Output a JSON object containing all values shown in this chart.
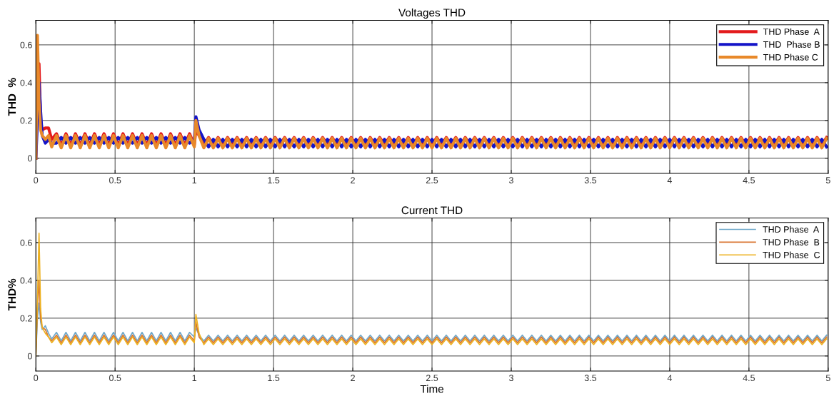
{
  "chart_data": [
    {
      "type": "line",
      "title": "Voltages THD",
      "ylabel": "THD  %",
      "x": [
        0,
        0.01,
        0.02,
        0.03,
        0.04,
        0.06,
        0.08,
        0.1,
        0.13,
        0.16,
        0.19,
        0.22,
        0.25,
        0.28,
        0.31,
        0.34,
        0.37,
        0.4,
        0.43,
        0.46,
        0.49,
        0.52,
        0.55,
        0.58,
        0.61,
        0.64,
        0.67,
        0.7,
        0.73,
        0.76,
        0.79,
        0.82,
        0.85,
        0.88,
        0.91,
        0.94,
        0.97,
        1.0,
        1.01,
        1.03,
        1.06,
        1.09,
        1.12,
        1.15,
        1.18,
        1.21,
        1.24,
        1.27,
        1.3,
        1.33,
        1.36,
        1.39,
        1.42,
        1.45,
        1.48,
        1.51,
        1.54,
        1.57,
        1.6,
        1.63,
        1.66,
        1.69,
        1.72,
        1.75,
        1.78,
        1.81,
        1.84,
        1.87,
        1.9,
        1.93,
        1.96,
        1.99,
        2.02,
        2.05,
        2.08,
        2.11,
        2.14,
        2.17,
        2.2,
        2.23,
        2.26,
        2.29,
        2.32,
        2.35,
        2.38,
        2.41,
        2.44,
        2.47,
        2.5,
        2.53,
        2.56,
        2.59,
        2.62,
        2.65,
        2.68,
        2.71,
        2.74,
        2.77,
        2.8,
        2.83,
        2.86,
        2.89,
        2.92,
        2.95,
        2.98,
        3.01,
        3.04,
        3.07,
        3.1,
        3.13,
        3.16,
        3.19,
        3.22,
        3.25,
        3.28,
        3.31,
        3.34,
        3.37,
        3.4,
        3.43,
        3.46,
        3.49,
        3.52,
        3.55,
        3.58,
        3.61,
        3.64,
        3.67,
        3.7,
        3.73,
        3.76,
        3.79,
        3.82,
        3.85,
        3.88,
        3.91,
        3.94,
        3.97,
        4.0,
        4.03,
        4.06,
        4.09,
        4.12,
        4.15,
        4.18,
        4.21,
        4.24,
        4.27,
        4.3,
        4.33,
        4.36,
        4.39,
        4.42,
        4.45,
        4.48,
        4.51,
        4.54,
        4.57,
        4.6,
        4.63,
        4.66,
        4.69,
        4.72,
        4.75,
        4.78,
        4.81,
        4.84,
        4.87,
        4.9,
        4.93,
        4.96,
        4.99
      ],
      "series": [
        {
          "name": "THD Phase  A",
          "color": "#e31a1c",
          "values": [
            0,
            0.35,
            0.5,
            0.2,
            0.15,
            0.16,
            0.16,
            0.1,
            0.13,
            0.07,
            0.13,
            0.07,
            0.13,
            0.07,
            0.13,
            0.07,
            0.13,
            0.07,
            0.13,
            0.07,
            0.13,
            0.07,
            0.13,
            0.07,
            0.13,
            0.07,
            0.13,
            0.07,
            0.13,
            0.07,
            0.13,
            0.07,
            0.13,
            0.07,
            0.13,
            0.07,
            0.13,
            0.07,
            0.15,
            0.12,
            0.07,
            0.11,
            0.07,
            0.11,
            0.07,
            0.11,
            0.07,
            0.11,
            0.07,
            0.11,
            0.07,
            0.11,
            0.07,
            0.11,
            0.07,
            0.11,
            0.07,
            0.11,
            0.07,
            0.11,
            0.07,
            0.11,
            0.07,
            0.11,
            0.07,
            0.11,
            0.07,
            0.11,
            0.07,
            0.11,
            0.07,
            0.11,
            0.07,
            0.11,
            0.07,
            0.11,
            0.07,
            0.11,
            0.07,
            0.11,
            0.07,
            0.11,
            0.07,
            0.11,
            0.07,
            0.11,
            0.07,
            0.11,
            0.07,
            0.11,
            0.07,
            0.11,
            0.07,
            0.11,
            0.07,
            0.11,
            0.07,
            0.11,
            0.07,
            0.11,
            0.07,
            0.11,
            0.07,
            0.11,
            0.07,
            0.11,
            0.07,
            0.11,
            0.07,
            0.11,
            0.07,
            0.11,
            0.07,
            0.11,
            0.07,
            0.11,
            0.07,
            0.11,
            0.07,
            0.11,
            0.07,
            0.11,
            0.07,
            0.11,
            0.07,
            0.11,
            0.07,
            0.11,
            0.07,
            0.11,
            0.07,
            0.11,
            0.07,
            0.11,
            0.07,
            0.11,
            0.07,
            0.11,
            0.07,
            0.11,
            0.07,
            0.11,
            0.07,
            0.11,
            0.07,
            0.11,
            0.07,
            0.11,
            0.07,
            0.11,
            0.07,
            0.11,
            0.07,
            0.11,
            0.07,
            0.11,
            0.07,
            0.11,
            0.07,
            0.11,
            0.07,
            0.11,
            0.07,
            0.11,
            0.07,
            0.11,
            0.07,
            0.11,
            0.07,
            0.11,
            0.07,
            0.11
          ]
        },
        {
          "name": "THD  Phase B",
          "color": "#1414c8",
          "values": [
            0,
            0.2,
            0.4,
            0.25,
            0.12,
            0.08,
            0.1,
            0.08,
            0.08,
            0.11,
            0.08,
            0.11,
            0.08,
            0.11,
            0.08,
            0.11,
            0.08,
            0.11,
            0.08,
            0.11,
            0.08,
            0.11,
            0.08,
            0.11,
            0.08,
            0.11,
            0.08,
            0.11,
            0.08,
            0.11,
            0.08,
            0.11,
            0.08,
            0.11,
            0.08,
            0.11,
            0.08,
            0.1,
            0.22,
            0.15,
            0.1,
            0.06,
            0.1,
            0.06,
            0.1,
            0.06,
            0.1,
            0.06,
            0.1,
            0.06,
            0.1,
            0.06,
            0.1,
            0.06,
            0.1,
            0.06,
            0.1,
            0.06,
            0.1,
            0.06,
            0.1,
            0.06,
            0.1,
            0.06,
            0.1,
            0.06,
            0.1,
            0.06,
            0.1,
            0.06,
            0.1,
            0.06,
            0.1,
            0.06,
            0.1,
            0.06,
            0.1,
            0.06,
            0.1,
            0.06,
            0.1,
            0.06,
            0.1,
            0.06,
            0.1,
            0.06,
            0.1,
            0.06,
            0.1,
            0.06,
            0.1,
            0.06,
            0.1,
            0.06,
            0.1,
            0.06,
            0.1,
            0.06,
            0.1,
            0.06,
            0.1,
            0.06,
            0.1,
            0.06,
            0.1,
            0.06,
            0.1,
            0.06,
            0.1,
            0.06,
            0.1,
            0.06,
            0.1,
            0.06,
            0.1,
            0.06,
            0.1,
            0.06,
            0.1,
            0.06,
            0.1,
            0.06,
            0.1,
            0.06,
            0.1,
            0.06,
            0.1,
            0.06,
            0.1,
            0.06,
            0.1,
            0.06,
            0.1,
            0.06,
            0.1,
            0.06,
            0.1,
            0.06,
            0.1,
            0.06,
            0.1,
            0.06,
            0.1,
            0.06,
            0.1,
            0.06,
            0.1,
            0.06,
            0.1,
            0.06,
            0.1,
            0.06,
            0.1,
            0.06,
            0.1,
            0.06,
            0.1,
            0.06,
            0.1,
            0.06,
            0.1,
            0.06,
            0.1,
            0.06,
            0.1,
            0.06,
            0.1,
            0.06,
            0.1,
            0.06,
            0.1,
            0.06
          ]
        },
        {
          "name": "THD Phase C",
          "color": "#e8892a",
          "values": [
            0,
            0.65,
            0.3,
            0.15,
            0.12,
            0.1,
            0.12,
            0.06,
            0.12,
            0.055,
            0.12,
            0.055,
            0.12,
            0.055,
            0.12,
            0.055,
            0.12,
            0.055,
            0.12,
            0.055,
            0.12,
            0.055,
            0.12,
            0.055,
            0.12,
            0.055,
            0.12,
            0.055,
            0.12,
            0.055,
            0.12,
            0.055,
            0.12,
            0.055,
            0.12,
            0.055,
            0.12,
            0.06,
            0.2,
            0.12,
            0.055,
            0.105,
            0.055,
            0.105,
            0.055,
            0.105,
            0.055,
            0.105,
            0.055,
            0.105,
            0.055,
            0.105,
            0.055,
            0.105,
            0.055,
            0.105,
            0.055,
            0.105,
            0.055,
            0.105,
            0.055,
            0.105,
            0.055,
            0.105,
            0.055,
            0.105,
            0.055,
            0.105,
            0.055,
            0.105,
            0.055,
            0.105,
            0.055,
            0.105,
            0.055,
            0.105,
            0.055,
            0.105,
            0.055,
            0.105,
            0.055,
            0.105,
            0.055,
            0.105,
            0.055,
            0.105,
            0.055,
            0.105,
            0.055,
            0.105,
            0.055,
            0.105,
            0.055,
            0.105,
            0.055,
            0.105,
            0.055,
            0.105,
            0.055,
            0.105,
            0.055,
            0.105,
            0.055,
            0.105,
            0.055,
            0.105,
            0.055,
            0.105,
            0.055,
            0.105,
            0.055,
            0.105,
            0.055,
            0.105,
            0.055,
            0.105,
            0.055,
            0.105,
            0.055,
            0.105,
            0.055,
            0.105,
            0.055,
            0.105,
            0.055,
            0.105,
            0.055,
            0.105,
            0.055,
            0.105,
            0.055,
            0.105,
            0.055,
            0.105,
            0.055,
            0.105,
            0.055,
            0.105,
            0.055,
            0.105,
            0.055,
            0.105,
            0.055,
            0.105,
            0.055,
            0.105,
            0.055,
            0.105,
            0.055,
            0.105,
            0.055,
            0.105,
            0.055,
            0.105,
            0.055,
            0.105,
            0.055,
            0.105,
            0.055,
            0.105,
            0.055,
            0.105,
            0.055,
            0.105,
            0.055,
            0.105,
            0.055,
            0.105,
            0.055,
            0.105,
            0.055,
            0.105
          ]
        }
      ],
      "xlim": [
        0,
        5
      ],
      "xticks": [
        0,
        0.5,
        1,
        1.5,
        2,
        2.5,
        3,
        3.5,
        4,
        4.5,
        5
      ],
      "ylim": [
        -0.08,
        0.73
      ],
      "yticks": [
        0,
        0.2,
        0.4,
        0.6
      ],
      "grid": true,
      "legend": "top right",
      "line_style": "solid",
      "marker": "none"
    },
    {
      "type": "line",
      "title": "Current THD",
      "ylabel": "THD%",
      "xlabel": "Time",
      "x": [
        0,
        0.01,
        0.02,
        0.03,
        0.04,
        0.06,
        0.08,
        0.1,
        0.13,
        0.16,
        0.19,
        0.22,
        0.25,
        0.28,
        0.31,
        0.34,
        0.37,
        0.4,
        0.43,
        0.46,
        0.49,
        0.52,
        0.55,
        0.58,
        0.61,
        0.64,
        0.67,
        0.7,
        0.73,
        0.76,
        0.79,
        0.82,
        0.85,
        0.88,
        0.91,
        0.94,
        0.97,
        1.0,
        1.01,
        1.03,
        1.06,
        1.09,
        1.12,
        1.15,
        1.18,
        1.21,
        1.24,
        1.27,
        1.3,
        1.33,
        1.36,
        1.39,
        1.42,
        1.45,
        1.48,
        1.51,
        1.54,
        1.57,
        1.6,
        1.63,
        1.66,
        1.69,
        1.72,
        1.75,
        1.78,
        1.81,
        1.84,
        1.87,
        1.9,
        1.93,
        1.96,
        1.99,
        2.02,
        2.05,
        2.08,
        2.11,
        2.14,
        2.17,
        2.2,
        2.23,
        2.26,
        2.29,
        2.32,
        2.35,
        2.38,
        2.41,
        2.44,
        2.47,
        2.5,
        2.53,
        2.56,
        2.59,
        2.62,
        2.65,
        2.68,
        2.71,
        2.74,
        2.77,
        2.8,
        2.83,
        2.86,
        2.89,
        2.92,
        2.95,
        2.98,
        3.01,
        3.04,
        3.07,
        3.1,
        3.13,
        3.16,
        3.19,
        3.22,
        3.25,
        3.28,
        3.31,
        3.34,
        3.37,
        3.4,
        3.43,
        3.46,
        3.49,
        3.52,
        3.55,
        3.58,
        3.61,
        3.64,
        3.67,
        3.7,
        3.73,
        3.76,
        3.79,
        3.82,
        3.85,
        3.88,
        3.91,
        3.94,
        3.97,
        4.0,
        4.03,
        4.06,
        4.09,
        4.12,
        4.15,
        4.18,
        4.21,
        4.24,
        4.27,
        4.3,
        4.33,
        4.36,
        4.39,
        4.42,
        4.45,
        4.48,
        4.51,
        4.54,
        4.57,
        4.6,
        4.63,
        4.66,
        4.69,
        4.72,
        4.75,
        4.78,
        4.81,
        4.84,
        4.87,
        4.9,
        4.93,
        4.96,
        4.99
      ],
      "series": [
        {
          "name": "THD Phase  A",
          "color": "#6fa8c9",
          "values": [
            0,
            0.2,
            0.28,
            0.18,
            0.14,
            0.16,
            0.12,
            0.09,
            0.125,
            0.08,
            0.125,
            0.08,
            0.125,
            0.08,
            0.125,
            0.08,
            0.125,
            0.08,
            0.125,
            0.08,
            0.125,
            0.08,
            0.125,
            0.08,
            0.125,
            0.08,
            0.125,
            0.08,
            0.125,
            0.08,
            0.125,
            0.08,
            0.125,
            0.08,
            0.125,
            0.08,
            0.125,
            0.1,
            0.15,
            0.11,
            0.08,
            0.11,
            0.08,
            0.11,
            0.08,
            0.11,
            0.08,
            0.11,
            0.08,
            0.11,
            0.08,
            0.11,
            0.08,
            0.11,
            0.08,
            0.11,
            0.08,
            0.11,
            0.08,
            0.11,
            0.08,
            0.11,
            0.08,
            0.11,
            0.08,
            0.11,
            0.08,
            0.11,
            0.08,
            0.11,
            0.08,
            0.11,
            0.08,
            0.11,
            0.08,
            0.11,
            0.08,
            0.11,
            0.08,
            0.11,
            0.08,
            0.11,
            0.08,
            0.11,
            0.08,
            0.11,
            0.08,
            0.11,
            0.08,
            0.11,
            0.08,
            0.11,
            0.08,
            0.11,
            0.08,
            0.11,
            0.08,
            0.11,
            0.08,
            0.11,
            0.08,
            0.11,
            0.08,
            0.11,
            0.08,
            0.11,
            0.08,
            0.11,
            0.08,
            0.11,
            0.08,
            0.11,
            0.08,
            0.11,
            0.08,
            0.11,
            0.08,
            0.11,
            0.08,
            0.11,
            0.08,
            0.11,
            0.08,
            0.11,
            0.08,
            0.11,
            0.08,
            0.11,
            0.08,
            0.11,
            0.08,
            0.11,
            0.08,
            0.11,
            0.08,
            0.11,
            0.08,
            0.11,
            0.08,
            0.11,
            0.08,
            0.11,
            0.08,
            0.11,
            0.08,
            0.11,
            0.08,
            0.11,
            0.08,
            0.11,
            0.08,
            0.11,
            0.08,
            0.11,
            0.08,
            0.11,
            0.08,
            0.11,
            0.08,
            0.11,
            0.08,
            0.11,
            0.08,
            0.11,
            0.08,
            0.11,
            0.08,
            0.11,
            0.08,
            0.11,
            0.08,
            0.11
          ]
        },
        {
          "name": "THD Phase  B",
          "color": "#d9742f",
          "values": [
            0,
            0.25,
            0.4,
            0.2,
            0.15,
            0.14,
            0.1,
            0.08,
            0.11,
            0.07,
            0.11,
            0.07,
            0.11,
            0.07,
            0.11,
            0.07,
            0.11,
            0.07,
            0.11,
            0.07,
            0.11,
            0.07,
            0.11,
            0.07,
            0.11,
            0.07,
            0.11,
            0.07,
            0.11,
            0.07,
            0.11,
            0.07,
            0.11,
            0.07,
            0.11,
            0.07,
            0.11,
            0.08,
            0.18,
            0.1,
            0.07,
            0.1,
            0.07,
            0.1,
            0.07,
            0.1,
            0.07,
            0.1,
            0.07,
            0.1,
            0.07,
            0.1,
            0.07,
            0.1,
            0.07,
            0.1,
            0.07,
            0.1,
            0.07,
            0.1,
            0.07,
            0.1,
            0.07,
            0.1,
            0.07,
            0.1,
            0.07,
            0.1,
            0.07,
            0.1,
            0.07,
            0.1,
            0.07,
            0.1,
            0.07,
            0.1,
            0.07,
            0.1,
            0.07,
            0.1,
            0.07,
            0.1,
            0.07,
            0.1,
            0.07,
            0.1,
            0.07,
            0.1,
            0.07,
            0.1,
            0.07,
            0.1,
            0.07,
            0.1,
            0.07,
            0.1,
            0.07,
            0.1,
            0.07,
            0.1,
            0.07,
            0.1,
            0.07,
            0.1,
            0.07,
            0.1,
            0.07,
            0.1,
            0.07,
            0.1,
            0.07,
            0.1,
            0.07,
            0.1,
            0.07,
            0.1,
            0.07,
            0.1,
            0.07,
            0.1,
            0.07,
            0.1,
            0.07,
            0.1,
            0.07,
            0.1,
            0.07,
            0.1,
            0.07,
            0.1,
            0.07,
            0.1,
            0.07,
            0.1,
            0.07,
            0.1,
            0.07,
            0.1,
            0.07,
            0.1,
            0.07,
            0.1,
            0.07,
            0.1,
            0.07,
            0.1,
            0.07,
            0.1,
            0.07,
            0.1,
            0.07,
            0.1,
            0.07,
            0.1,
            0.07,
            0.1,
            0.07,
            0.1,
            0.07,
            0.1,
            0.07,
            0.1,
            0.07,
            0.1,
            0.07,
            0.1,
            0.07,
            0.1,
            0.07,
            0.1,
            0.07,
            0.1
          ]
        },
        {
          "name": "THD Phase  C",
          "color": "#edb120",
          "values": [
            0,
            0.3,
            0.65,
            0.25,
            0.15,
            0.12,
            0.1,
            0.07,
            0.1,
            0.06,
            0.1,
            0.06,
            0.1,
            0.06,
            0.1,
            0.06,
            0.1,
            0.06,
            0.1,
            0.06,
            0.1,
            0.06,
            0.1,
            0.06,
            0.1,
            0.06,
            0.1,
            0.06,
            0.1,
            0.06,
            0.1,
            0.06,
            0.1,
            0.06,
            0.1,
            0.06,
            0.1,
            0.07,
            0.22,
            0.12,
            0.06,
            0.09,
            0.06,
            0.09,
            0.06,
            0.09,
            0.06,
            0.09,
            0.06,
            0.09,
            0.06,
            0.09,
            0.06,
            0.09,
            0.06,
            0.09,
            0.06,
            0.09,
            0.06,
            0.09,
            0.06,
            0.09,
            0.06,
            0.09,
            0.06,
            0.09,
            0.06,
            0.09,
            0.06,
            0.09,
            0.06,
            0.09,
            0.06,
            0.09,
            0.06,
            0.09,
            0.06,
            0.09,
            0.06,
            0.09,
            0.06,
            0.09,
            0.06,
            0.09,
            0.06,
            0.09,
            0.06,
            0.09,
            0.06,
            0.09,
            0.06,
            0.09,
            0.06,
            0.09,
            0.06,
            0.09,
            0.06,
            0.09,
            0.06,
            0.09,
            0.06,
            0.09,
            0.06,
            0.09,
            0.06,
            0.09,
            0.06,
            0.09,
            0.06,
            0.09,
            0.06,
            0.09,
            0.06,
            0.09,
            0.06,
            0.09,
            0.06,
            0.09,
            0.06,
            0.09,
            0.06,
            0.09,
            0.06,
            0.09,
            0.06,
            0.09,
            0.06,
            0.09,
            0.06,
            0.09,
            0.06,
            0.09,
            0.06,
            0.09,
            0.06,
            0.09,
            0.06,
            0.09,
            0.06,
            0.09,
            0.06,
            0.09,
            0.06,
            0.09,
            0.06,
            0.09,
            0.06,
            0.09,
            0.06,
            0.09,
            0.06,
            0.09,
            0.06,
            0.09,
            0.06,
            0.09,
            0.06,
            0.09,
            0.06,
            0.09,
            0.06,
            0.09,
            0.06,
            0.09,
            0.06,
            0.09,
            0.06,
            0.09,
            0.06,
            0.09,
            0.06,
            0.09
          ]
        }
      ],
      "xlim": [
        0,
        5
      ],
      "xticks": [
        0,
        0.5,
        1,
        1.5,
        2,
        2.5,
        3,
        3.5,
        4,
        4.5,
        5
      ],
      "ylim": [
        -0.08,
        0.73
      ],
      "yticks": [
        0,
        0.2,
        0.4,
        0.6
      ],
      "grid": true,
      "legend": "top right",
      "line_style": "solid",
      "marker": "none"
    }
  ]
}
